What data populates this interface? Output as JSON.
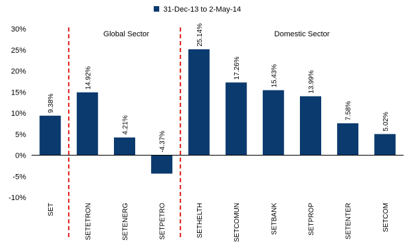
{
  "chart_data": {
    "type": "bar",
    "title": "",
    "xlabel": "",
    "ylabel": "",
    "legend": {
      "position": "top-center",
      "entries": [
        "31-Dec-13 to 2-May-14"
      ]
    },
    "series": [
      {
        "name": "31-Dec-13 to 2-May-14",
        "color": "#0b3a6e",
        "values": [
          9.38,
          14.92,
          4.21,
          -4.37,
          25.14,
          17.26,
          15.43,
          13.99,
          7.58,
          5.02
        ]
      }
    ],
    "categories": [
      "SET",
      "SETETRON",
      "SETENERG",
      "SETPETRO",
      "SETHELTH",
      "SETCOMUN",
      "SETBANK",
      "SETPROP",
      "SETENTER",
      "SETCOM"
    ],
    "data_labels": [
      "9.38%",
      "14.92%",
      "4.21%",
      "-4.37%",
      "25.14%",
      "17.26%",
      "15.43%",
      "13.99%",
      "7.58%",
      "5.02%"
    ],
    "ylim": [
      -10,
      30
    ],
    "yticks": [
      -10,
      -5,
      0,
      5,
      10,
      15,
      20,
      25,
      30
    ],
    "ytick_labels": [
      "-10%",
      "-5%",
      "0%",
      "5%",
      "10%",
      "15%",
      "20%",
      "25%",
      "30%"
    ],
    "grid": false,
    "dividers": {
      "color": "#e0201c",
      "style": "dashed",
      "after_category_index": [
        0,
        3
      ]
    },
    "group_labels": [
      "Global Sector",
      "Domestic Sector"
    ]
  }
}
